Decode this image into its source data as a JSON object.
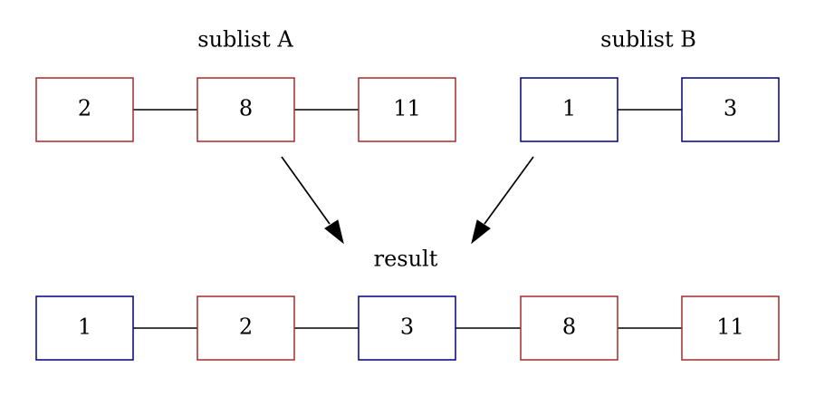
{
  "colors": {
    "sublist_a": "#a52a2a",
    "sublist_b": "#000080"
  },
  "labels": {
    "sublist_a": "sublist A",
    "sublist_b": "sublist B",
    "result": "result"
  },
  "sublist_a": [
    "2",
    "8",
    "11"
  ],
  "sublist_b": [
    "1",
    "3"
  ],
  "result": [
    {
      "value": "1",
      "source": "sublist_b"
    },
    {
      "value": "2",
      "source": "sublist_a"
    },
    {
      "value": "3",
      "source": "sublist_b"
    },
    {
      "value": "8",
      "source": "sublist_a"
    },
    {
      "value": "11",
      "source": "sublist_a"
    }
  ]
}
